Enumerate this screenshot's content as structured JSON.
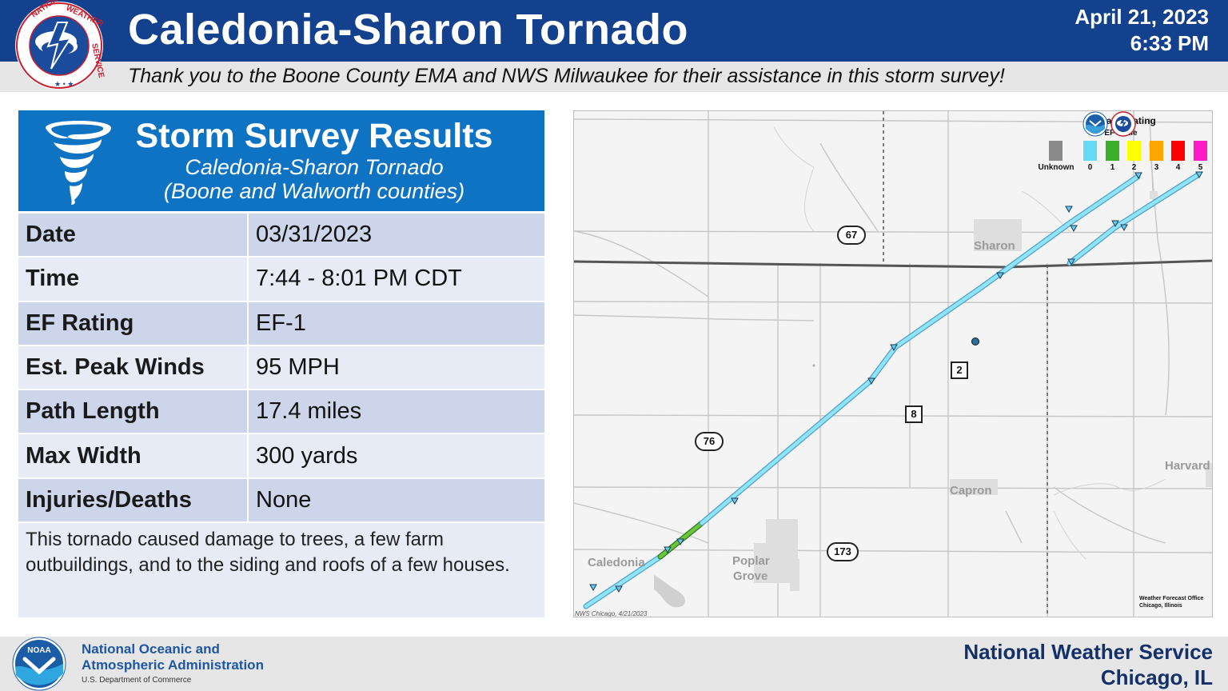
{
  "header": {
    "title": "Caledonia-Sharon Tornado",
    "date": "April 21, 2023",
    "time": "6:33 PM",
    "subtitle": "Thank you to the Boone County EMA and NWS Milwaukee for their assistance in this storm survey!",
    "logo_text": "NATIONAL WEATHER SERVICE",
    "colors": {
      "header_bg": "#13418d",
      "subtitle_bg": "#e6e6e6"
    }
  },
  "results": {
    "title": "Storm Survey Results",
    "subtitle1": "Caledonia-Sharon Tornado",
    "subtitle2": "(Boone and Walworth counties)",
    "rows": [
      {
        "label": "Date",
        "value": "03/31/2023"
      },
      {
        "label": "Time",
        "value": "7:44 - 8:01 PM CDT"
      },
      {
        "label": "EF Rating",
        "value": "EF-1"
      },
      {
        "label": "Est. Peak Winds",
        "value": "95 MPH"
      },
      {
        "label": "Path Length",
        "value": "17.4 miles"
      },
      {
        "label": "Max Width",
        "value": "300 yards"
      },
      {
        "label": "Injuries/Deaths",
        "value": "None"
      }
    ],
    "summary": "This tornado caused damage to trees, a few farm outbuildings, and to the siding and roofs of a few houses.",
    "colors": {
      "panel_head": "#0f73c4",
      "row_dark": "#ccd5e9",
      "row_light": "#e7ebf5"
    }
  },
  "map": {
    "places": [
      "Sharon",
      "Capron",
      "Harvard",
      "Caledonia",
      "Poplar",
      "Grove"
    ],
    "routes": {
      "r67": "67",
      "r76": "76",
      "r173": "173",
      "r2": "2",
      "r8": "8"
    },
    "legend": {
      "title": "Tornado Rating",
      "subtitle": "EF-scale",
      "items": [
        {
          "label": "Unknown",
          "color": "#8a8a8a"
        },
        {
          "label": "0",
          "color": "#66d9f5"
        },
        {
          "label": "1",
          "color": "#3aad2a"
        },
        {
          "label": "2",
          "color": "#ffff00"
        },
        {
          "label": "3",
          "color": "#ffa500"
        },
        {
          "label": "4",
          "color": "#ff0000"
        },
        {
          "label": "5",
          "color": "#ff1cc8"
        }
      ]
    },
    "credit": "NWS Chicago, 4/21/2023",
    "wfo_line1": "Weather Forecast Office",
    "wfo_line2": "Chicago, Illinois"
  },
  "footer": {
    "agency_line1": "National Oceanic and",
    "agency_line2": "Atmospheric Administration",
    "department": "U.S. Department of Commerce",
    "noaa_logo_text": "NOAA",
    "office_line1": "National Weather Service",
    "office_line2": "Chicago, IL"
  }
}
